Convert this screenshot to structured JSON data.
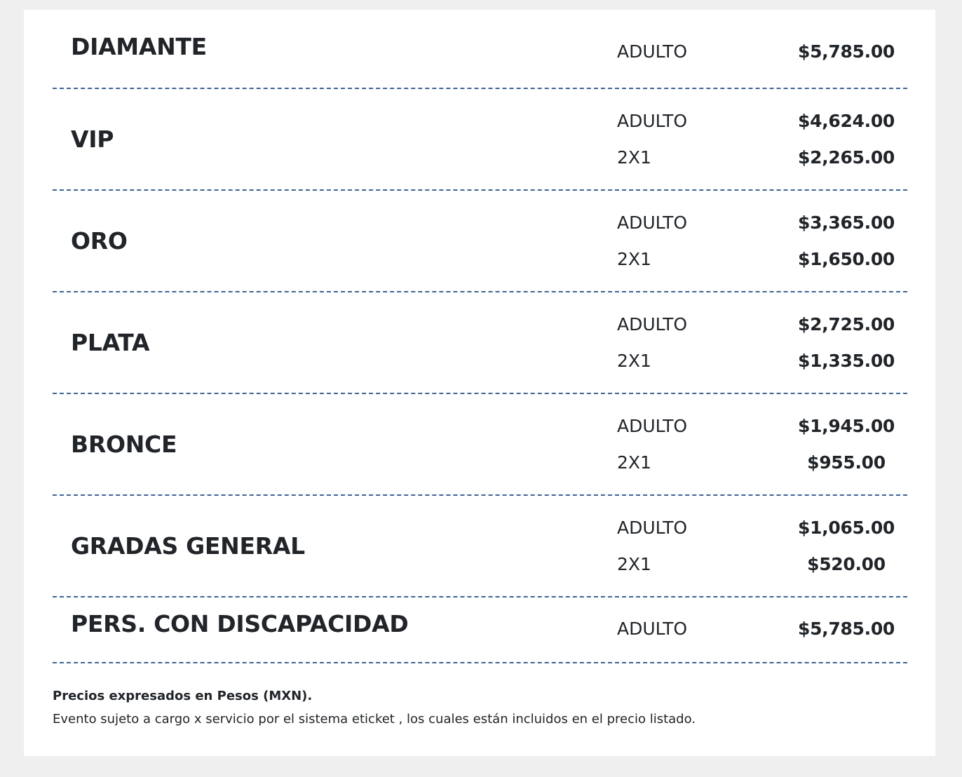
{
  "tiers": [
    {
      "name": "DIAMANTE",
      "entries": [
        {
          "type": "ADULTO",
          "price": "$5,785.00"
        }
      ]
    },
    {
      "name": "VIP",
      "entries": [
        {
          "type": "ADULTO",
          "price": "$4,624.00"
        },
        {
          "type": "2X1",
          "price": "$2,265.00"
        }
      ]
    },
    {
      "name": "ORO",
      "entries": [
        {
          "type": "ADULTO",
          "price": "$3,365.00"
        },
        {
          "type": "2X1",
          "price": "$1,650.00"
        }
      ]
    },
    {
      "name": "PLATA",
      "entries": [
        {
          "type": "ADULTO",
          "price": "$2,725.00"
        },
        {
          "type": "2X1",
          "price": "$1,335.00"
        }
      ]
    },
    {
      "name": "BRONCE",
      "entries": [
        {
          "type": "ADULTO",
          "price": "$1,945.00"
        },
        {
          "type": "2X1",
          "price": "$955.00"
        }
      ]
    },
    {
      "name": "GRADAS GENERAL",
      "entries": [
        {
          "type": "ADULTO",
          "price": "$1,065.00"
        },
        {
          "type": "2X1",
          "price": "$520.00"
        }
      ]
    },
    {
      "name": "PERS. CON DISCAPACIDAD",
      "entries": [
        {
          "type": "ADULTO",
          "price": "$5,785.00"
        }
      ]
    }
  ],
  "footer": {
    "currency_note": "Precios expresados en Pesos (MXN).",
    "service_note": "Evento sujeto a cargo x servicio por el sistema eticket , los cuales están incluidos en el precio listado."
  },
  "colors": {
    "divider": "#3f6394",
    "background": "#efefef",
    "text": "#212529"
  }
}
